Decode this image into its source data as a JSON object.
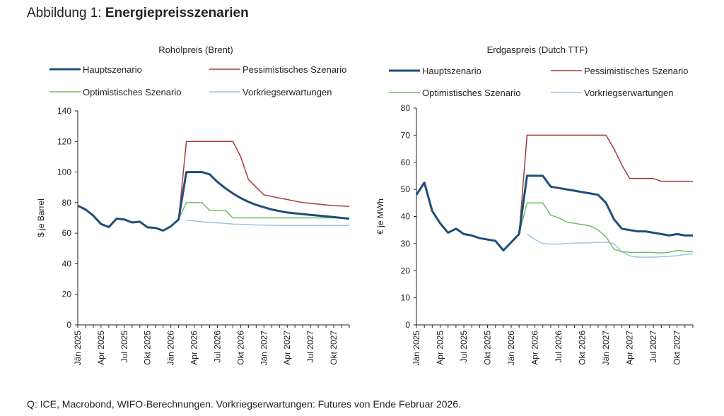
{
  "figure": {
    "label": "Abbildung 1: ",
    "title": "Energiepreisszenarien",
    "source": "Q: ICE, Macrobond, WIFO-Berechnungen. Vorkriegserwartungen: Futures von Ende Februar 2026."
  },
  "colors": {
    "haupt": "#1f4e79",
    "pessimistisch": "#a63a3a",
    "optimistisch": "#6cbf5f",
    "vorkrieg": "#9dc3e6"
  },
  "chart_data": [
    {
      "type": "line",
      "title": "Rohölpreis (Brent)",
      "ylabel": "$ je Barrel",
      "ylim": [
        0,
        140
      ],
      "yticks": [
        0,
        20,
        40,
        60,
        80,
        100,
        120,
        140
      ],
      "xlabels": [
        "Jän 2025",
        "Apr 2025",
        "Jul 2025",
        "Okt 2025",
        "Jän 2026",
        "Apr 2026",
        "Jul 2026",
        "Okt 2026",
        "Jän 2027",
        "Apr 2027",
        "Jul 2027",
        "Okt 2027"
      ],
      "xlabel_months": [
        0,
        3,
        6,
        9,
        12,
        15,
        18,
        21,
        24,
        27,
        30,
        33
      ],
      "xrange_months": [
        0,
        35
      ],
      "grid": false,
      "legend": "top",
      "series": [
        {
          "key": "haupt",
          "name": "Hauptszenario",
          "color_key": "haupt",
          "width": 3,
          "x": [
            0,
            1,
            2,
            3,
            4,
            5,
            6,
            7,
            8,
            9,
            10,
            11,
            12,
            13,
            14,
            15,
            16,
            17,
            18,
            19,
            20,
            21,
            22,
            23,
            24,
            25,
            26,
            27,
            28,
            29,
            30,
            31,
            32,
            33,
            34,
            35
          ],
          "y": [
            78,
            75.5,
            71.5,
            66,
            64,
            69.5,
            69,
            67,
            67.5,
            63.8,
            63.5,
            61.7,
            64.5,
            69,
            100,
            100,
            100,
            98.5,
            93.5,
            89.5,
            86,
            83,
            80.5,
            78.5,
            77,
            75.5,
            74.5,
            73.5,
            73,
            72.5,
            72,
            71.5,
            71,
            70.5,
            70,
            69.5
          ]
        },
        {
          "key": "pessimistisch",
          "name": "Pessimistisches Szenario",
          "color_key": "pessimistisch",
          "width": 1.5,
          "x": [
            13,
            14,
            15,
            16,
            17,
            18,
            19,
            20,
            21,
            22,
            23,
            24,
            25,
            26,
            27,
            28,
            29,
            30,
            31,
            32,
            33,
            34,
            35
          ],
          "y": [
            69,
            120,
            120,
            120,
            120,
            120,
            120,
            120,
            110,
            95,
            90,
            85,
            84,
            83,
            82,
            81,
            80,
            79.5,
            79,
            78.5,
            78,
            77.8,
            77.5
          ]
        },
        {
          "key": "optimistisch",
          "name": "Optimistisches Szenario",
          "color_key": "optimistisch",
          "width": 1.5,
          "x": [
            13,
            14,
            15,
            16,
            17,
            18,
            19,
            20,
            21,
            22,
            23,
            24,
            25,
            26,
            27,
            28,
            29,
            30,
            31,
            32,
            33,
            34,
            35
          ],
          "y": [
            69,
            80,
            80,
            80,
            75,
            75,
            75,
            70,
            70,
            70,
            70,
            70,
            70,
            70,
            70,
            70,
            70,
            70,
            70,
            70,
            70,
            70,
            70
          ]
        },
        {
          "key": "vorkrieg",
          "name": "Vorkriegserwartungen",
          "color_key": "vorkrieg",
          "width": 1.5,
          "x": [
            14,
            15,
            16,
            17,
            18,
            19,
            20,
            21,
            22,
            23,
            24,
            25,
            26,
            27,
            28,
            29,
            30,
            31,
            32,
            33,
            34,
            35
          ],
          "y": [
            68.5,
            68,
            67.5,
            67,
            66.7,
            66.4,
            66,
            65.8,
            65.6,
            65.4,
            65.3,
            65.2,
            65.1,
            65,
            65,
            65,
            65,
            65,
            65,
            65,
            65,
            65
          ]
        }
      ]
    },
    {
      "type": "line",
      "title": "Erdgaspreis (Dutch TTF)",
      "ylabel": "€ je MWh",
      "ylim": [
        0,
        80
      ],
      "yticks": [
        0,
        10,
        20,
        30,
        40,
        50,
        60,
        70,
        80
      ],
      "xlabels": [
        "Jän 2025",
        "Apr 2025",
        "Jul 2025",
        "Okt 2025",
        "Jän 2026",
        "Apr 2026",
        "Jul 2026",
        "Okt 2026",
        "Jän 2027",
        "Apr 2027",
        "Jul 2027",
        "Okt 2027"
      ],
      "xlabel_months": [
        0,
        3,
        6,
        9,
        12,
        15,
        18,
        21,
        24,
        27,
        30,
        33
      ],
      "xrange_months": [
        0,
        35
      ],
      "grid": false,
      "legend": "top",
      "series": [
        {
          "key": "haupt",
          "name": "Hauptszenario",
          "color_key": "haupt",
          "width": 3,
          "x": [
            0,
            1,
            2,
            3,
            4,
            5,
            6,
            7,
            8,
            9,
            10,
            11,
            12,
            13,
            14,
            15,
            16,
            17,
            18,
            19,
            20,
            21,
            22,
            23,
            24,
            25,
            26,
            27,
            28,
            29,
            30,
            31,
            32,
            33,
            34,
            35
          ],
          "y": [
            48,
            52.5,
            42,
            37.5,
            34,
            35.5,
            33.5,
            33,
            32,
            31.5,
            31,
            27.5,
            30.5,
            33.5,
            55,
            55,
            55,
            51,
            50.5,
            50,
            49.5,
            49,
            48.5,
            48,
            45,
            39,
            35.5,
            35,
            34.5,
            34.5,
            34,
            33.5,
            33,
            33.5,
            33,
            33
          ]
        },
        {
          "key": "pessimistisch",
          "name": "Pessimistisches Szenario",
          "color_key": "pessimistisch",
          "width": 1.5,
          "x": [
            13,
            14,
            15,
            16,
            17,
            18,
            19,
            20,
            21,
            22,
            23,
            24,
            25,
            26,
            27,
            28,
            29,
            30,
            31,
            32,
            33,
            34,
            35
          ],
          "y": [
            33.5,
            70,
            70,
            70,
            70,
            70,
            70,
            70,
            70,
            70,
            70,
            70,
            65,
            59,
            54,
            54,
            54,
            54,
            53,
            53,
            53,
            53,
            53
          ]
        },
        {
          "key": "optimistisch",
          "name": "Optimistisches Szenario",
          "color_key": "optimistisch",
          "width": 1.5,
          "x": [
            13,
            14,
            15,
            16,
            17,
            18,
            19,
            20,
            21,
            22,
            23,
            24,
            25,
            26,
            27,
            28,
            29,
            30,
            31,
            32,
            33,
            34,
            35
          ],
          "y": [
            33.5,
            45,
            45,
            45,
            40.5,
            39.5,
            38,
            37.5,
            37,
            36.5,
            35,
            32.5,
            28,
            27,
            26.8,
            26.7,
            26.8,
            26.7,
            26.5,
            26.8,
            27.5,
            27.2,
            27
          ]
        },
        {
          "key": "vorkrieg",
          "name": "Vorkriegserwartungen",
          "color_key": "vorkrieg",
          "width": 1.5,
          "x": [
            14,
            15,
            16,
            17,
            18,
            19,
            20,
            21,
            22,
            23,
            24,
            25,
            26,
            27,
            28,
            29,
            30,
            31,
            32,
            33,
            34,
            35
          ],
          "y": [
            33.5,
            31.5,
            30,
            29.8,
            29.8,
            30,
            30.2,
            30.2,
            30.3,
            30.5,
            30.5,
            30,
            27,
            25.5,
            25,
            25,
            25,
            25.2,
            25.3,
            25.5,
            26,
            26.2
          ]
        }
      ]
    }
  ]
}
